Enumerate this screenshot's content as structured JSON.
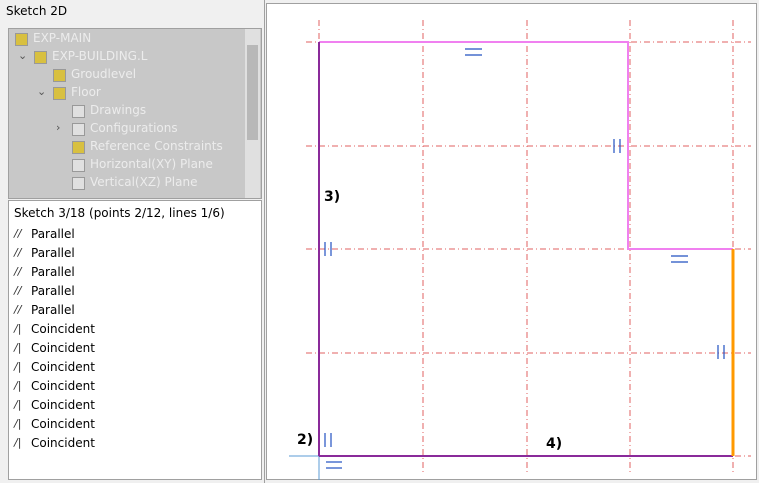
{
  "panel": {
    "title": "Sketch 2D",
    "tree": [
      {
        "label": "EXP-MAIN"
      },
      {
        "label": "EXP-BUILDING.L"
      },
      {
        "label": "Groudlevel"
      },
      {
        "label": "Floor"
      },
      {
        "label": "Drawings"
      },
      {
        "label": "Configurations"
      },
      {
        "label": "Reference Constraints"
      },
      {
        "label": "Horizontal(XY) Plane"
      },
      {
        "label": "Vertical(XZ) Plane"
      }
    ],
    "sketch_header": "Sketch 3/18 (points 2/12, lines 1/6)",
    "constraints": [
      "Parallel",
      "Parallel",
      "Parallel",
      "Parallel",
      "Parallel",
      "Coincident",
      "Coincident",
      "Coincident",
      "Coincident",
      "Coincident",
      "Coincident",
      "Coincident"
    ]
  },
  "canvas": {
    "labels": [
      "3)",
      "2)",
      "4)"
    ]
  }
}
